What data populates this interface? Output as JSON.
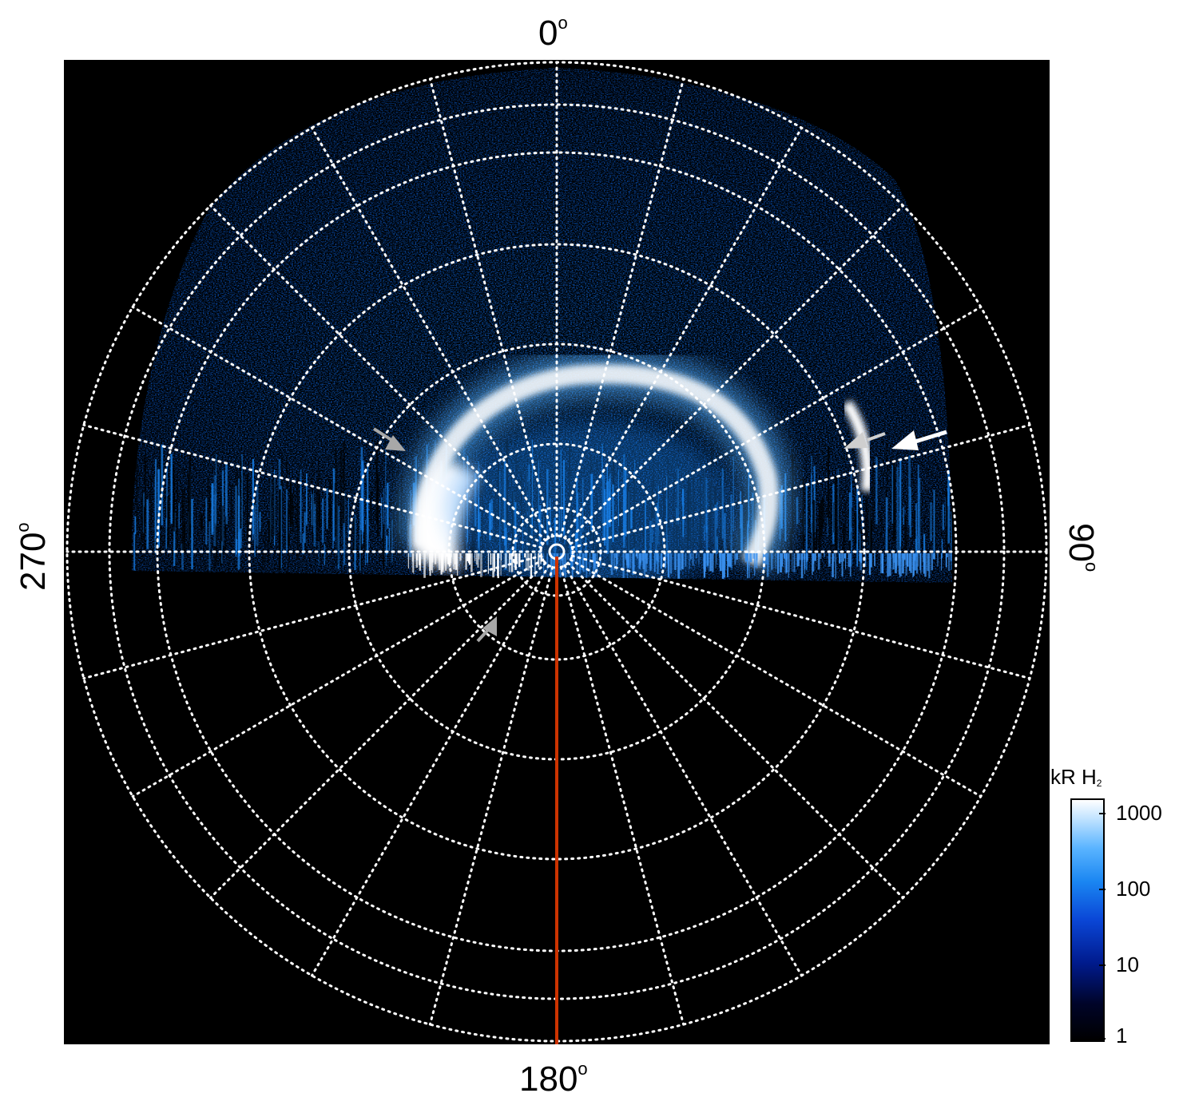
{
  "figure": {
    "longitude_labels": {
      "top": "0",
      "right": "90",
      "bottom": "180",
      "left": "270",
      "degree_symbol": "o"
    },
    "colorbar": {
      "title_main": "kR H",
      "title_sub": "2",
      "ticks": [
        "1000",
        "100",
        "10",
        "1"
      ],
      "scale": "log",
      "colors": [
        "#000000",
        "#001a8c",
        "#1a86f2",
        "#ffffff"
      ]
    },
    "colors": {
      "background": "#000000",
      "grid": "#ffffff",
      "meridian_line": "#cc3300",
      "arrow_white": "#ffffff",
      "arrow_grey": "#a8a8a8",
      "emission_bright": "#ffffff",
      "emission_mid": "#1a86f2",
      "emission_low": "#0a2f9a"
    },
    "grid": {
      "style": "dotted",
      "meridian_step_deg": 15,
      "latitude_rings": 8
    }
  }
}
